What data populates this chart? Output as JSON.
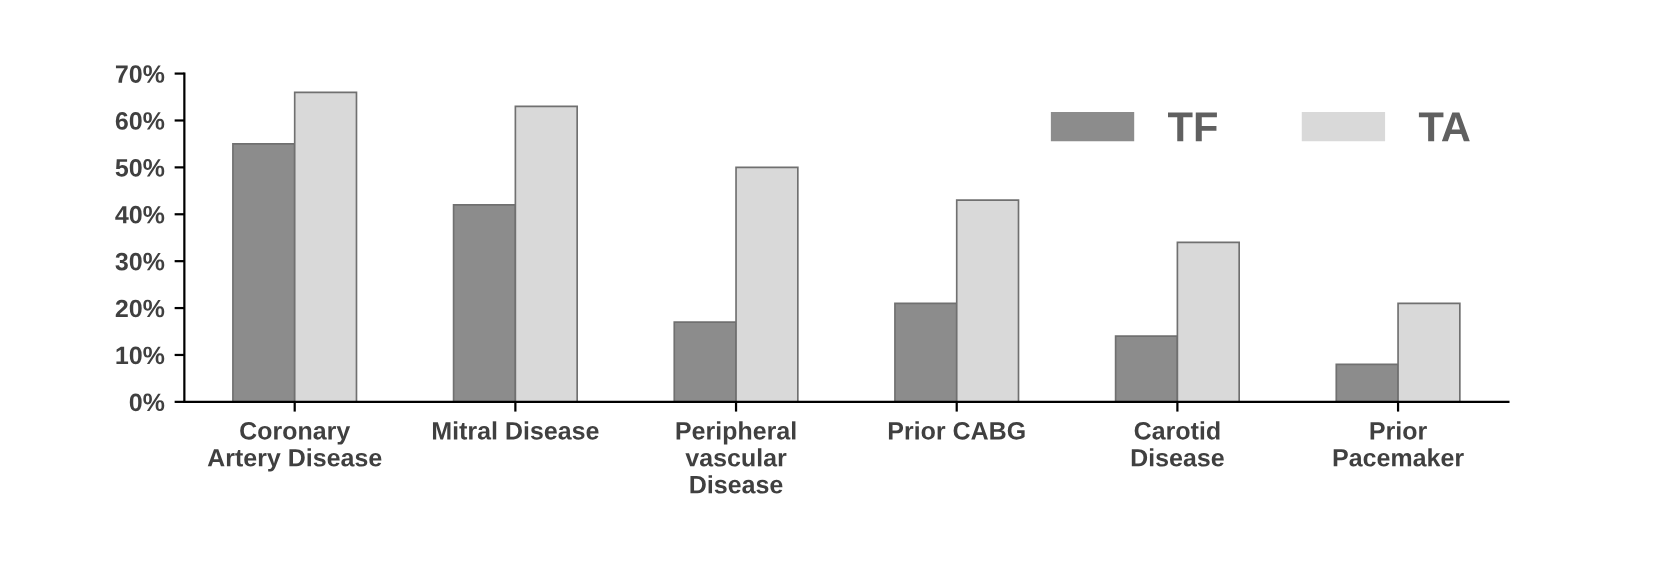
{
  "chart_data": {
    "type": "bar",
    "categories": [
      "Coronary\nArtery Disease",
      "Mitral Disease",
      "Peripheral\nvascular\nDisease",
      "Prior CABG",
      "Carotid\nDisease",
      "Prior\nPacemaker"
    ],
    "series": [
      {
        "name": "TF",
        "color": "#8c8c8c",
        "values": [
          0.55,
          0.42,
          0.17,
          0.21,
          0.14,
          0.08
        ]
      },
      {
        "name": "TA",
        "color": "#d9d9d9",
        "values": [
          0.66,
          0.63,
          0.5,
          0.43,
          0.34,
          0.21
        ]
      }
    ],
    "ylim": [
      0,
      0.7
    ],
    "yticks": [
      {
        "value": 0,
        "label": "0%"
      },
      {
        "value": 0.1,
        "label": "10%"
      },
      {
        "value": 0.2,
        "label": "20%"
      },
      {
        "value": 0.3,
        "label": "30%"
      },
      {
        "value": 0.4,
        "label": "40%"
      },
      {
        "value": 0.5,
        "label": "50%"
      },
      {
        "value": 0.6,
        "label": "60%"
      },
      {
        "value": 0.7,
        "label": "70%"
      }
    ],
    "legend": "top right",
    "grid": false
  }
}
